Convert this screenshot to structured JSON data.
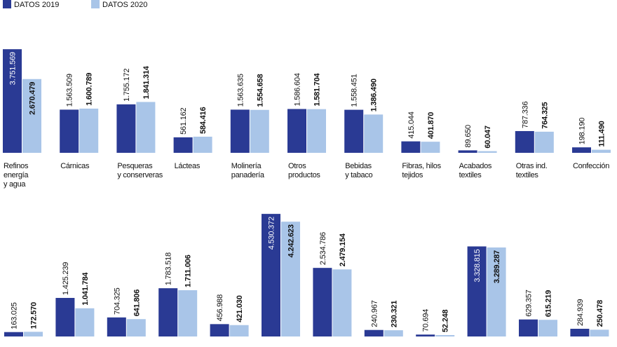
{
  "chart_data": {
    "type": "bar",
    "colors": {
      "2019": "#2a3a94",
      "2020": "#a9c5e8"
    },
    "legend": [
      "DATOS 2019",
      "DATOS 2020"
    ],
    "legend_position": "top-left",
    "panels": [
      {
        "categories": [
          [
            "Refinos",
            "energía",
            "y agua"
          ],
          [
            "Cárnicas"
          ],
          [
            "Pesqueras",
            "y conserveras"
          ],
          [
            "Lácteas"
          ],
          [
            "Molinería",
            "panadería"
          ],
          [
            "Otros",
            "productos"
          ],
          [
            "Bebidas",
            "y tabaco"
          ],
          [
            "Fibras, hilos",
            "tejidos"
          ],
          [
            "Acabados",
            "textiles"
          ],
          [
            "Otras ind.",
            "textiles"
          ],
          [
            "Confección"
          ]
        ],
        "series": [
          {
            "name": "DATOS 2019",
            "values": [
              3751569,
              1563509,
              1755172,
              561162,
              1563635,
              1586604,
              1558451,
              415044,
              89650,
              787336,
              198190
            ],
            "labels": [
              "3.751.569",
              "1.563.509",
              "1.755.172",
              "561.162",
              "1.563.635",
              "1.586.604",
              "1.558.451",
              "415.044",
              "89.650",
              "787.336",
              "198.190"
            ]
          },
          {
            "name": "DATOS 2020",
            "values": [
              2670479,
              1600789,
              1841314,
              584416,
              1554658,
              1581704,
              1386490,
              401870,
              60047,
              764325,
              111490
            ],
            "labels": [
              "2.670.479",
              "1.600.789",
              "1.841.314",
              "584.416",
              "1.554.658",
              "1.581.704",
              "1.386.490",
              "401.870",
              "60.047",
              "764.325",
              "111.490"
            ]
          }
        ]
      },
      {
        "categories": [],
        "series": [
          {
            "name": "DATOS 2019",
            "values": [
              163025,
              1425239,
              704325,
              1783518,
              456988,
              4530372,
              2534786,
              240967,
              70694,
              3328815,
              629357,
              284939
            ],
            "labels": [
              "163.025",
              "1.425.239",
              "704.325",
              "1.783.518",
              "456.988",
              "4.530.372",
              "2.534.786",
              "240.967",
              "70.694",
              "3.328.815",
              "629.357",
              "284.939"
            ]
          },
          {
            "name": "DATOS 2020",
            "values": [
              172570,
              1041784,
              641806,
              1711006,
              421030,
              4242623,
              2479154,
              230321,
              52248,
              3289287,
              615219,
              250478
            ],
            "labels": [
              "172.570",
              "1.041.784",
              "641.806",
              "1.711.006",
              "421.030",
              "4.242.623",
              "2.479.154",
              "230.321",
              "52.248",
              "3.289.287",
              "615.219",
              "250.478"
            ]
          }
        ]
      }
    ]
  }
}
